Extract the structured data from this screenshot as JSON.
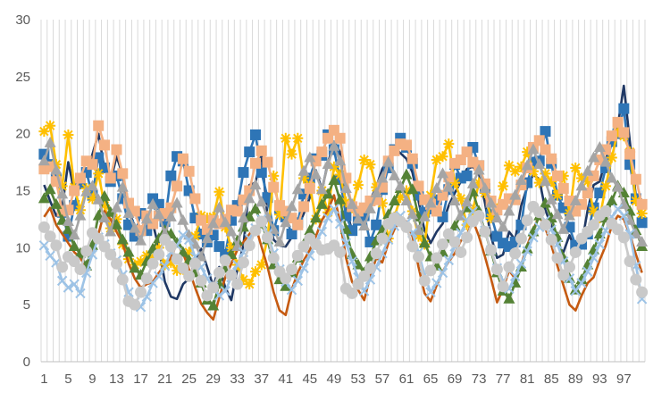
{
  "chart_data": {
    "type": "line",
    "title": "",
    "xlabel": "",
    "ylabel": "",
    "ylim": [
      0,
      30
    ],
    "yticks": [
      0,
      5,
      10,
      15,
      20,
      25,
      30
    ],
    "x": [
      1,
      2,
      3,
      4,
      5,
      6,
      7,
      8,
      9,
      10,
      11,
      12,
      13,
      14,
      15,
      16,
      17,
      18,
      19,
      20,
      21,
      22,
      23,
      24,
      25,
      26,
      27,
      28,
      29,
      30,
      31,
      32,
      33,
      34,
      35,
      36,
      37,
      38,
      39,
      40,
      41,
      42,
      43,
      44,
      45,
      46,
      47,
      48,
      49,
      50,
      51,
      52,
      53,
      54,
      55,
      56,
      57,
      58,
      59,
      60,
      61,
      62,
      63,
      64,
      65,
      66,
      67,
      68,
      69,
      70,
      71,
      72,
      73,
      74,
      75,
      76,
      77,
      78,
      79,
      80,
      81,
      82,
      83,
      84,
      85,
      86,
      87,
      88,
      89,
      90,
      91,
      92,
      93,
      94,
      95,
      96,
      97,
      98,
      99,
      100
    ],
    "xtick_labels": [
      "1",
      "5",
      "9",
      "13",
      "17",
      "21",
      "25",
      "29",
      "33",
      "37",
      "41",
      "45",
      "49",
      "53",
      "57",
      "61",
      "65",
      "69",
      "73",
      "77",
      "81",
      "85",
      "89",
      "93",
      "97"
    ],
    "grid": "vertical",
    "legend": "none",
    "series": [
      {
        "color": "#1f3864",
        "marker": "none",
        "values": [
          15.5,
          14.1,
          12.8,
          13.6,
          17.5,
          14.9,
          15.6,
          16.4,
          18.2,
          20.0,
          16.9,
          15.8,
          18.0,
          16.4,
          13.2,
          11.9,
          10.9,
          12.5,
          12.1,
          10.0,
          7.0,
          5.7,
          5.5,
          6.8,
          7.3,
          8.8,
          9.9,
          8.3,
          6.6,
          8.3,
          6.5,
          5.4,
          8.1,
          10.2,
          15.5,
          15.7,
          18.2,
          12.7,
          10.7,
          10.2,
          10.1,
          10.9,
          11.8,
          13.0,
          14.4,
          16.8,
          15.1,
          17.4,
          19.3,
          18.4,
          13.4,
          11.5,
          12.3,
          13.6,
          14.2,
          15.3,
          16.9,
          17.8,
          18.8,
          18.3,
          17.8,
          16.6,
          14.1,
          11.5,
          10.4,
          11.4,
          12.1,
          13.7,
          14.8,
          15.8,
          16.9,
          17.1,
          16.5,
          13.9,
          11.0,
          9.1,
          9.4,
          11.4,
          10.7,
          13.7,
          15.3,
          16.4,
          16.0,
          13.3,
          11.9,
          10.2,
          9.6,
          11.1,
          9.7,
          10.2,
          13.3,
          15.5,
          15.8,
          17.8,
          19.1,
          20.7,
          24.2,
          19.3,
          14.4,
          14.2
        ]
      },
      {
        "color": "#2e75b6",
        "marker": "square",
        "values": [
          18.2,
          17.3,
          16.1,
          13.1,
          11.0,
          13.7,
          15.6,
          16.6,
          14.6,
          17.9,
          17.0,
          15.8,
          16.3,
          14.3,
          12.0,
          11.0,
          13.0,
          11.5,
          14.3,
          13.8,
          12.3,
          16.3,
          18.0,
          17.6,
          15.0,
          12.6,
          11.2,
          10.5,
          11.1,
          10.1,
          9.4,
          12.4,
          13.7,
          16.6,
          18.4,
          19.9,
          16.6,
          14.4,
          11.5,
          13.4,
          12.7,
          11.2,
          12.2,
          14.7,
          16.1,
          17.8,
          18.1,
          19.9,
          18.6,
          16.0,
          12.8,
          11.5,
          12.4,
          12.8,
          10.5,
          12.0,
          15.1,
          17.0,
          18.6,
          19.6,
          18.8,
          17.4,
          14.6,
          13.1,
          13.4,
          14.2,
          12.7,
          15.1,
          17.3,
          16.1,
          16.3,
          18.8,
          17.2,
          15.2,
          12.9,
          11.0,
          10.4,
          10.1,
          10.5,
          12.0,
          15.7,
          17.5,
          17.6,
          20.2,
          17.4,
          14.6,
          13.5,
          11.8,
          10.2,
          10.3,
          11.2,
          13.5,
          14.8,
          17.0,
          19.3,
          20.0,
          22.2,
          17.3,
          14.3,
          12.2
        ]
      },
      {
        "color": "#ffc000",
        "marker": "star",
        "values": [
          20.2,
          20.7,
          17.3,
          15.4,
          19.9,
          15.3,
          13.3,
          15.2,
          14.3,
          16.5,
          13.7,
          11.7,
          12.5,
          10.3,
          9.0,
          8.5,
          8.8,
          9.3,
          9.0,
          10.0,
          8.5,
          8.7,
          8.0,
          8.1,
          9.6,
          11.0,
          12.8,
          12.6,
          12.7,
          14.9,
          11.8,
          10.0,
          8.5,
          7.2,
          6.8,
          7.9,
          8.5,
          10.8,
          16.3,
          12.9,
          19.6,
          18.2,
          19.6,
          16.1,
          15.4,
          12.5,
          15.0,
          13.1,
          17.1,
          16.4,
          14.0,
          13.5,
          15.5,
          17.7,
          17.3,
          15.3,
          13.9,
          10.8,
          12.7,
          14.4,
          15.0,
          13.2,
          11.0,
          10.3,
          14.6,
          17.7,
          18.0,
          19.1,
          15.7,
          14.3,
          12.0,
          13.3,
          15.7,
          14.8,
          12.6,
          13.4,
          15.4,
          17.2,
          16.7,
          17.1,
          18.4,
          16.7,
          15.7,
          16.5,
          15.8,
          14.6,
          16.3,
          13.0,
          17.0,
          16.1,
          15.8,
          13.2,
          12.6,
          15.4,
          17.9,
          20.2,
          19.8,
          18.4,
          14.1,
          13.0
        ]
      },
      {
        "color": "#f4b183",
        "marker": "square",
        "values": [
          16.9,
          17.1,
          15.8,
          13.2,
          13.3,
          15.0,
          16.1,
          17.6,
          17.3,
          20.7,
          19.0,
          16.1,
          18.6,
          16.5,
          13.9,
          13.2,
          11.5,
          12.8,
          12.1,
          12.8,
          13.0,
          13.5,
          15.4,
          17.8,
          16.7,
          14.3,
          12.4,
          11.6,
          12.4,
          12.1,
          12.5,
          13.3,
          13.2,
          14.2,
          15.0,
          17.4,
          18.5,
          17.5,
          15.3,
          13.7,
          13.2,
          12.6,
          12.0,
          13.6,
          15.2,
          17.6,
          18.4,
          19.6,
          20.3,
          19.6,
          16.1,
          13.6,
          13.2,
          13.5,
          14.1,
          14.2,
          15.3,
          17.6,
          18.5,
          19.1,
          19.0,
          17.8,
          15.4,
          14.2,
          13.8,
          13.2,
          14.6,
          16.2,
          17.4,
          17.7,
          18.4,
          17.5,
          17.2,
          15.6,
          14.1,
          13.3,
          13.8,
          14.3,
          14.2,
          15.5,
          17.0,
          18.8,
          19.4,
          18.6,
          17.8,
          16.3,
          15.2,
          14.1,
          13.2,
          13.8,
          14.8,
          16.3,
          17.7,
          18.6,
          19.8,
          21.0,
          20.1,
          18.2,
          16.0,
          13.8
        ]
      },
      {
        "color": "#c55a11",
        "marker": "none",
        "values": [
          12.7,
          13.5,
          12.0,
          11.2,
          10.4,
          9.6,
          9.1,
          8.2,
          9.5,
          11.2,
          13.2,
          12.5,
          11.4,
          10.4,
          8.6,
          7.3,
          6.5,
          6.8,
          7.0,
          7.8,
          8.5,
          9.1,
          10.4,
          9.5,
          8.1,
          6.5,
          5.1,
          4.3,
          3.7,
          5.6,
          7.4,
          8.6,
          9.8,
          10.5,
          11.2,
          11.9,
          10.1,
          8.3,
          6.1,
          4.5,
          4.1,
          6.3,
          7.8,
          8.9,
          9.8,
          11.0,
          12.4,
          13.3,
          14.6,
          12.3,
          9.1,
          7.0,
          6.3,
          5.4,
          7.5,
          9.1,
          8.7,
          10.4,
          11.6,
          12.5,
          12.3,
          11.0,
          8.3,
          6.0,
          5.3,
          6.7,
          7.9,
          8.8,
          9.5,
          10.6,
          11.1,
          12.4,
          11.0,
          9.2,
          7.3,
          5.2,
          6.4,
          8.0,
          7.3,
          8.5,
          10.2,
          11.6,
          12.8,
          11.7,
          10.2,
          8.4,
          6.7,
          5.0,
          4.5,
          5.8,
          6.9,
          7.4,
          8.9,
          10.2,
          11.9,
          12.8,
          12.5,
          11.1,
          9.4,
          7.8
        ]
      },
      {
        "color": "#548235",
        "marker": "triangle",
        "values": [
          14.3,
          15.1,
          13.8,
          12.4,
          11.6,
          10.1,
          9.5,
          8.4,
          10.2,
          12.8,
          14.5,
          13.1,
          12.0,
          10.7,
          9.6,
          8.2,
          7.6,
          8.8,
          9.9,
          10.8,
          11.5,
          11.2,
          10.4,
          9.6,
          8.9,
          7.8,
          6.9,
          5.4,
          4.9,
          6.8,
          8.2,
          9.4,
          10.6,
          11.8,
          12.7,
          13.4,
          12.1,
          10.7,
          8.5,
          7.2,
          6.6,
          7.8,
          9.1,
          10.3,
          11.5,
          12.6,
          13.8,
          14.7,
          15.9,
          14.2,
          11.6,
          9.4,
          8.5,
          7.8,
          9.2,
          10.6,
          11.5,
          12.9,
          14.1,
          15.2,
          16.4,
          15.1,
          12.7,
          10.4,
          9.2,
          8.4,
          9.6,
          10.8,
          11.9,
          12.8,
          13.5,
          14.9,
          13.2,
          11.4,
          9.7,
          7.8,
          6.2,
          5.5,
          6.9,
          8.3,
          9.9,
          11.4,
          12.8,
          13.9,
          12.6,
          10.9,
          9.1,
          7.3,
          6.3,
          7.2,
          8.5,
          9.8,
          11.2,
          12.6,
          14.1,
          15.4,
          14.8,
          13.2,
          11.5,
          10.1
        ]
      },
      {
        "color": "#a5a5a5",
        "marker": "triangle",
        "values": [
          17.6,
          19.2,
          16.8,
          14.7,
          12.3,
          11.1,
          12.8,
          14.9,
          15.4,
          14.2,
          12.6,
          11.4,
          13.5,
          15.3,
          13.0,
          11.7,
          10.6,
          12.5,
          13.8,
          12.9,
          11.2,
          12.7,
          13.9,
          12.4,
          11.1,
          10.3,
          9.2,
          10.8,
          12.1,
          13.5,
          12.2,
          11.4,
          10.1,
          12.6,
          14.3,
          15.5,
          14.0,
          12.7,
          11.6,
          10.5,
          12.2,
          13.6,
          15.1,
          16.7,
          17.9,
          16.4,
          15.1,
          17.3,
          18.9,
          17.6,
          15.2,
          13.8,
          12.5,
          11.9,
          13.4,
          14.8,
          16.1,
          17.5,
          16.3,
          15.4,
          14.1,
          12.9,
          11.5,
          12.7,
          13.9,
          15.2,
          16.5,
          15.3,
          14.1,
          12.8,
          14.0,
          15.6,
          16.8,
          15.2,
          13.9,
          12.6,
          11.8,
          13.2,
          14.6,
          15.9,
          17.2,
          18.6,
          17.3,
          15.8,
          14.2,
          12.9,
          11.6,
          12.8,
          14.1,
          15.4,
          16.7,
          17.9,
          18.8,
          17.5,
          16.1,
          15.3,
          13.8,
          12.4,
          11.2,
          10.5
        ]
      },
      {
        "color": "#9dc3e6",
        "marker": "x",
        "values": [
          10.2,
          9.3,
          8.7,
          7.1,
          6.5,
          6.8,
          6.0,
          7.8,
          9.4,
          10.9,
          10.3,
          9.5,
          8.9,
          7.6,
          6.1,
          5.2,
          4.8,
          5.7,
          6.9,
          7.5,
          8.4,
          9.6,
          10.2,
          11.1,
          10.7,
          9.2,
          8.3,
          7.3,
          6.6,
          5.8,
          6.2,
          7.4,
          8.5,
          9.6,
          10.8,
          11.7,
          12.5,
          11.2,
          9.5,
          8.1,
          7.0,
          6.3,
          7.1,
          8.2,
          9.3,
          10.5,
          11.4,
          12.6,
          13.4,
          12.1,
          10.4,
          8.8,
          7.4,
          6.2,
          7.2,
          8.3,
          9.5,
          10.7,
          11.9,
          12.8,
          12.2,
          11.3,
          9.6,
          7.6,
          6.1,
          6.9,
          7.8,
          8.9,
          10.1,
          11.3,
          12.4,
          13.2,
          12.7,
          11.5,
          9.8,
          8.2,
          7.1,
          6.4,
          7.5,
          8.6,
          9.7,
          10.9,
          11.8,
          12.4,
          11.6,
          10.3,
          8.8,
          7.3,
          6.2,
          6.9,
          7.9,
          9.1,
          10.3,
          11.5,
          12.7,
          13.4,
          12.8,
          11.2,
          8.4,
          5.5
        ]
      },
      {
        "color": "#c9c9c9",
        "marker": "circle",
        "values": [
          11.8,
          11.0,
          10.2,
          8.3,
          9.2,
          8.8,
          8.1,
          9.7,
          11.3,
          10.8,
          10.1,
          9.4,
          8.6,
          7.2,
          5.3,
          5.0,
          6.1,
          7.3,
          8.6,
          9.4,
          10.7,
          10.1,
          9.0,
          8.2,
          7.5,
          8.6,
          7.1,
          5.8,
          6.5,
          7.8,
          8.9,
          7.6,
          6.8,
          8.7,
          10.2,
          11.5,
          12.3,
          10.9,
          9.1,
          7.9,
          7.3,
          8.1,
          9.3,
          10.1,
          10.8,
          10.3,
          9.8,
          9.9,
          10.2,
          9.6,
          6.4,
          6.0,
          6.8,
          7.5,
          8.2,
          9.5,
          10.8,
          12.1,
          12.6,
          12.3,
          11.8,
          10.1,
          9.2,
          7.1,
          8.0,
          9.1,
          10.3,
          11.2,
          10.5,
          9.6,
          10.9,
          12.3,
          12.8,
          11.4,
          9.8,
          8.1,
          6.6,
          8.3,
          9.5,
          10.8,
          12.4,
          13.6,
          13.1,
          12.0,
          10.7,
          9.1,
          7.6,
          8.3,
          9.6,
          10.8,
          11.4,
          12.0,
          12.8,
          13.2,
          12.1,
          11.6,
          10.9,
          8.8,
          7.2,
          6.1
        ]
      }
    ]
  }
}
